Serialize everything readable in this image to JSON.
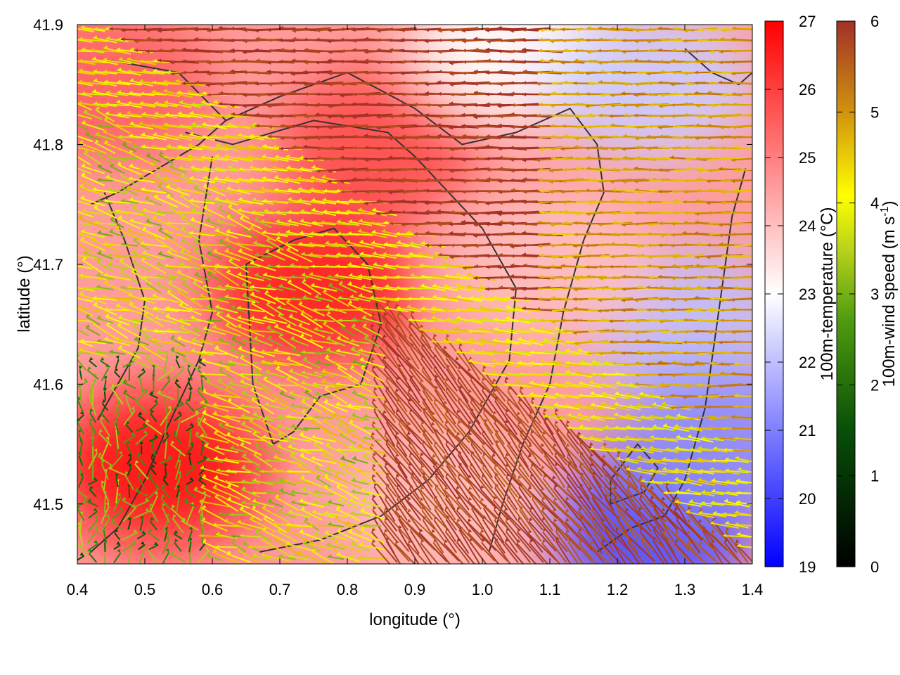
{
  "chart_data": {
    "type": "heatmap",
    "title": "",
    "xlabel": "longitude (°)",
    "ylabel": "latitude (°)",
    "xlim": [
      0.4,
      1.4
    ],
    "ylim": [
      41.45,
      41.9
    ],
    "x_ticks": [
      0.4,
      0.5,
      0.6,
      0.7,
      0.8,
      0.9,
      1.0,
      1.1,
      1.2,
      1.3,
      1.4
    ],
    "x_tick_labels": [
      "0.4",
      "0.5",
      "0.6",
      "0.7",
      "0.8",
      "0.9",
      "1.0",
      "1.1",
      "1.2",
      "1.3",
      "1.4"
    ],
    "y_ticks": [
      41.5,
      41.6,
      41.7,
      41.8,
      41.9
    ],
    "y_tick_labels": [
      "41.5",
      "41.6",
      "41.7",
      "41.8",
      "41.9"
    ],
    "grid": false,
    "temperature_colorbar": {
      "label": "100m-temperature (°C)",
      "range": [
        19,
        27
      ],
      "ticks": [
        19,
        20,
        21,
        22,
        23,
        24,
        25,
        26,
        27
      ],
      "tick_labels": [
        "19",
        "20",
        "21",
        "22",
        "23",
        "24",
        "25",
        "26",
        "27"
      ],
      "colors": [
        "#0000ff",
        "#ffffff",
        "#ff0000"
      ]
    },
    "wind_colorbar": {
      "label_main": "100m-wind speed (m s",
      "label_sup": "-1",
      "label_end": ")",
      "range": [
        0,
        6
      ],
      "ticks": [
        0,
        1,
        2,
        3,
        4,
        5,
        6
      ],
      "tick_labels": [
        "0",
        "1",
        "2",
        "3",
        "4",
        "5",
        "6"
      ],
      "colors": [
        "#000000",
        "#0b6b0b",
        "#9ac218",
        "#ffff00",
        "#d7a000",
        "#a33028"
      ]
    },
    "temperature_field_regions": [
      {
        "lon": 0.52,
        "lat": 41.53,
        "temp": 26.8
      },
      {
        "lon": 0.75,
        "lat": 41.68,
        "temp": 26.5
      },
      {
        "lon": 0.85,
        "lat": 41.8,
        "temp": 25.8
      },
      {
        "lon": 0.45,
        "lat": 41.85,
        "temp": 25.5
      },
      {
        "lon": 1.05,
        "lat": 41.88,
        "temp": 23.0
      },
      {
        "lon": 1.25,
        "lat": 41.85,
        "temp": 22.2
      },
      {
        "lon": 1.3,
        "lat": 41.65,
        "temp": 22.0
      },
      {
        "lon": 1.25,
        "lat": 41.48,
        "temp": 20.2
      },
      {
        "lon": 1.35,
        "lat": 41.55,
        "temp": 21.2
      },
      {
        "lon": 0.95,
        "lat": 41.5,
        "temp": 24.0
      },
      {
        "lon": 1.1,
        "lat": 41.7,
        "temp": 24.0
      }
    ],
    "wind_regimes": [
      {
        "region": "north-central",
        "direction": "westward",
        "speed_ms": 6
      },
      {
        "region": "south-east",
        "direction": "north-westward",
        "speed_ms": 6
      },
      {
        "region": "south-west",
        "direction": "variable",
        "speed_ms": 1.5
      },
      {
        "region": "north-east",
        "direction": "westward",
        "speed_ms": 4.5
      },
      {
        "region": "convergence-band",
        "direction": "westward",
        "speed_ms": 3.5
      }
    ],
    "contour_levels_c": [
      24,
      26
    ]
  }
}
